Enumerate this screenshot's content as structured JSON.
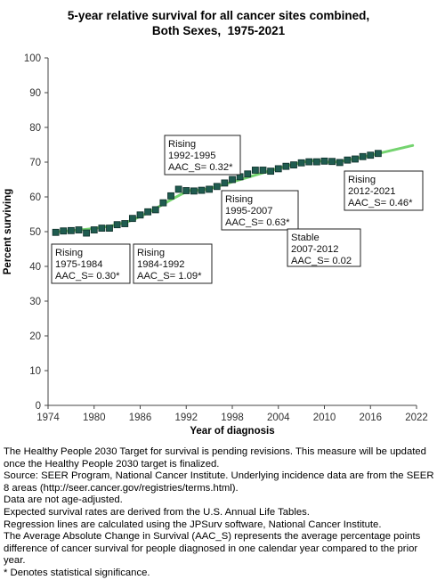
{
  "title_line1": "5-year relative survival for all cancer sites combined,",
  "title_line2": "Both Sexes,  1975-2021",
  "colors": {
    "trend": "#74d36f",
    "marker": "#1f5c50",
    "marker_edge": "#0e2f29",
    "axis": "#444444"
  },
  "chart_data": {
    "type": "scatter",
    "title": "5-year relative survival for all cancer sites combined, Both Sexes,  1975-2021",
    "xlabel": "Year of diagnosis",
    "ylabel": "Percent surviving",
    "xlim": [
      1974,
      2022
    ],
    "ylim": [
      0,
      100
    ],
    "x_ticks": [
      1974,
      1980,
      1986,
      1992,
      1998,
      2004,
      2010,
      2016,
      2022
    ],
    "y_ticks": [
      0,
      10,
      20,
      30,
      40,
      50,
      60,
      70,
      80,
      90,
      100
    ],
    "grid": false,
    "series": [
      {
        "kind": "observed",
        "x": [
          1975,
          1976,
          1977,
          1978,
          1979,
          1980,
          1981,
          1982,
          1983,
          1984,
          1985,
          1986,
          1987,
          1988,
          1989,
          1990,
          1991,
          1992,
          1993,
          1994,
          1995,
          1996,
          1997,
          1998,
          1999,
          2000,
          2001,
          2002,
          2003,
          2004,
          2005,
          2006,
          2007,
          2008,
          2009,
          2010,
          2011,
          2012,
          2013,
          2014,
          2015,
          2016,
          2017
        ],
        "y": [
          49.8,
          50.2,
          50.3,
          50.5,
          49.6,
          50.5,
          51.0,
          51.0,
          52.0,
          52.3,
          53.8,
          54.8,
          55.7,
          56.3,
          58.3,
          60.3,
          62.2,
          61.8,
          61.7,
          61.9,
          62.2,
          63.0,
          64.0,
          65.0,
          65.8,
          66.6,
          67.7,
          67.7,
          67.4,
          68.1,
          68.8,
          69.2,
          69.8,
          70.1,
          70.1,
          70.3,
          70.2,
          69.9,
          70.6,
          70.9,
          71.6,
          72.0,
          72.5
        ]
      },
      {
        "kind": "modeled",
        "x": [
          1975,
          1984,
          1992,
          1995,
          2007,
          2012,
          2021.5
        ],
        "y": [
          49.9,
          52.6,
          61.4,
          62.4,
          69.9,
          70.2,
          74.8
        ]
      }
    ],
    "annotations": [
      {
        "line1": "Rising",
        "line2": "1975-1984",
        "line3": "AAC_S=  0.30*"
      },
      {
        "line1": "Rising",
        "line2": "1984-1992",
        "line3": "AAC_S=  1.09*"
      },
      {
        "line1": "Rising",
        "line2": "1992-1995",
        "line3": "AAC_S=  0.32*"
      },
      {
        "line1": "Rising",
        "line2": "1995-2007",
        "line3": "AAC_S=  0.63*"
      },
      {
        "line1": "Stable",
        "line2": "2007-2012",
        "line3": "AAC_S=  0.02"
      },
      {
        "line1": "Rising",
        "line2": "2012-2021",
        "line3": "AAC_S=  0.46*"
      }
    ]
  },
  "notes": [
    "The Healthy People 2030 Target for survival is pending revisions. This measure will be updated once the Healthy People 2030 target is finalized.",
    "Source: SEER Program, National Cancer Institute. Underlying incidence data are from the SEER 8 areas (http://seer.cancer.gov/registries/terms.html).",
    "Data are not age-adjusted.",
    "Expected survival rates are derived from the U.S. Annual Life Tables.",
    "Regression lines are calculated using the JPSurv software, National Cancer Institute.",
    "The Average Absolute Change in Survival (AAC_S) represents the average percentage points difference of cancer survival for people diagnosed in one calendar year compared to the prior year.",
    "* Denotes statistical significance."
  ]
}
